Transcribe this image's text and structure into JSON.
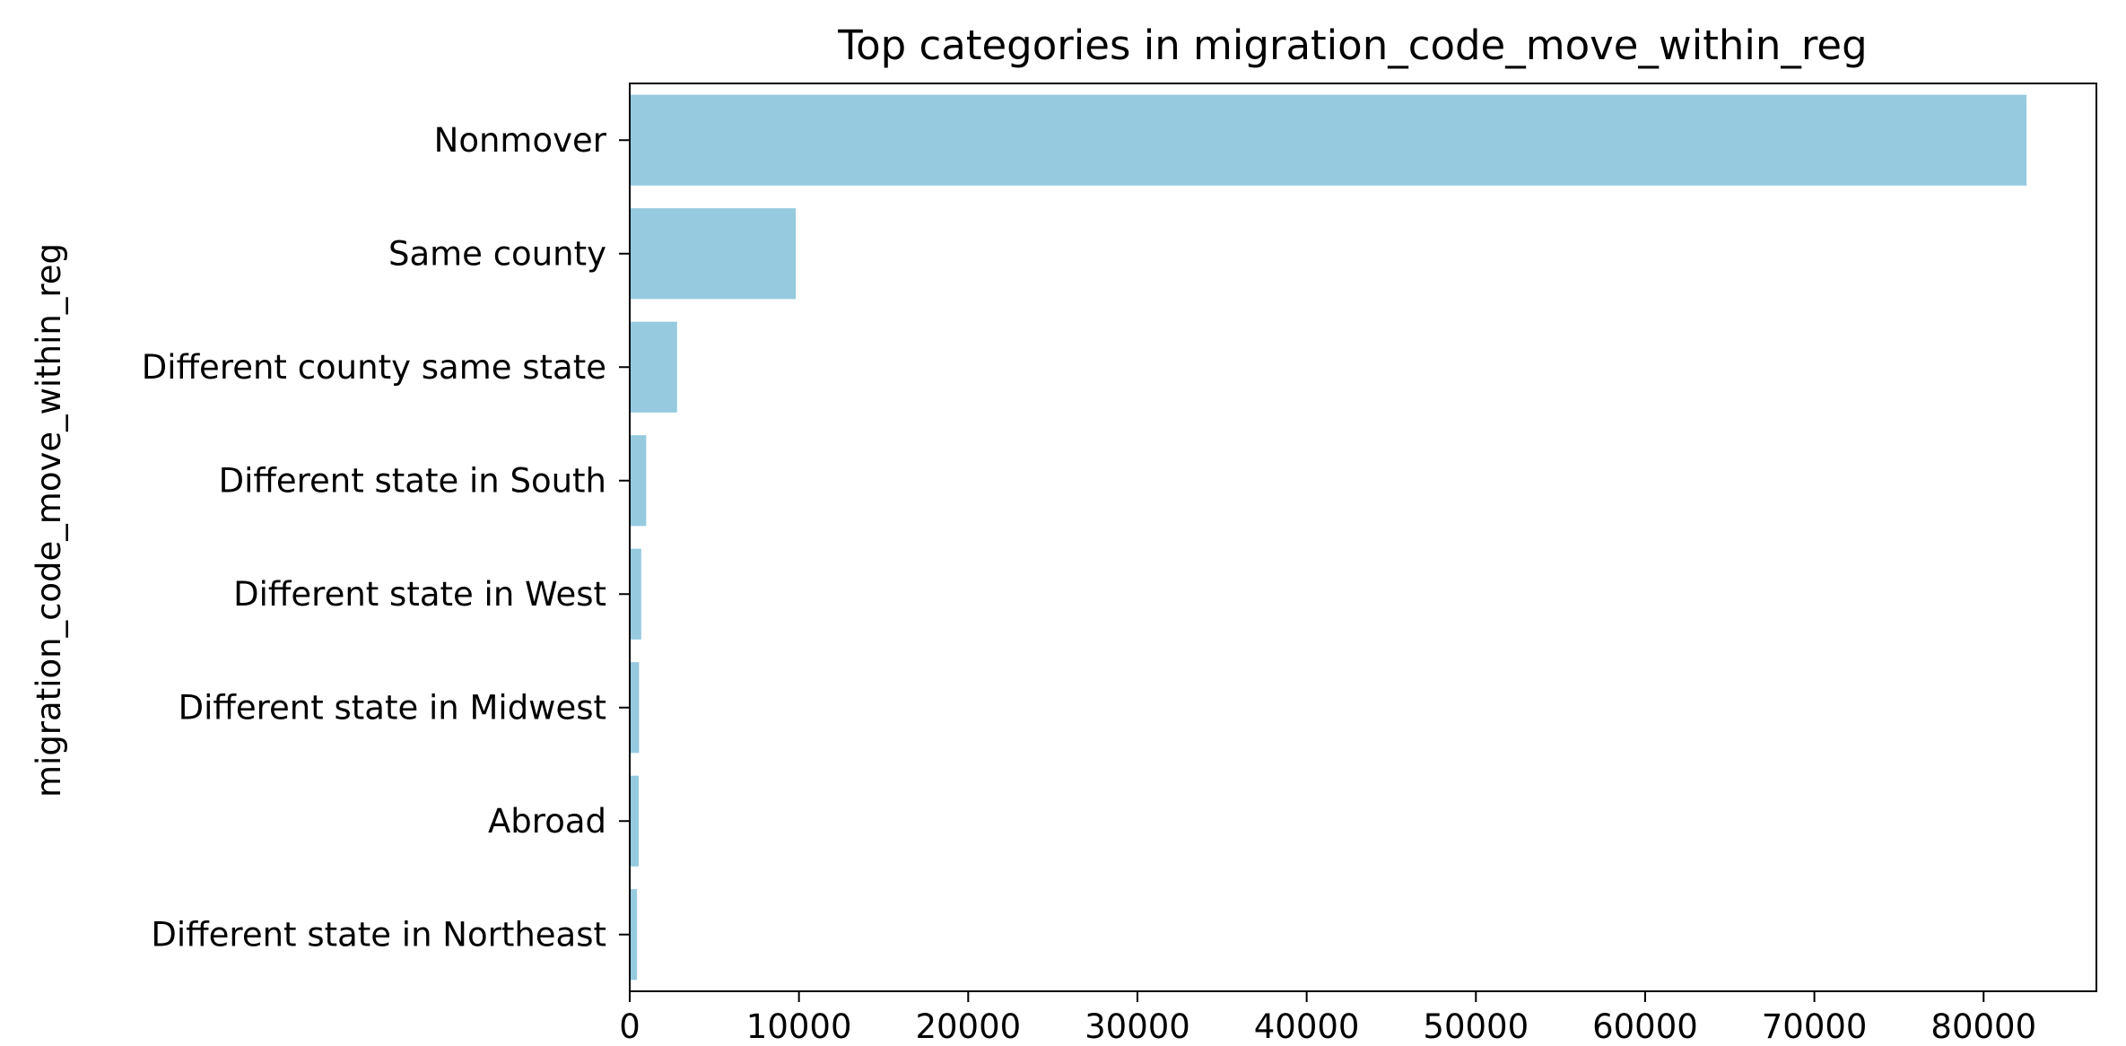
{
  "chart_data": {
    "type": "bar",
    "orientation": "horizontal",
    "title": "Top categories in migration_code_move_within_reg",
    "xlabel": "",
    "ylabel": "migration_code_move_within_reg",
    "categories": [
      "Nonmover",
      "Same county",
      "Different county same state",
      "Different state in South",
      "Different state in West",
      "Different state in Midwest",
      "Abroad",
      "Different state in Northeast"
    ],
    "values": [
      82538,
      9812,
      2797,
      973,
      679,
      551,
      530,
      429
    ],
    "xlim": [
      0,
      86665
    ],
    "xticks": [
      0,
      10000,
      20000,
      30000,
      40000,
      50000,
      60000,
      70000,
      80000
    ],
    "grid": false,
    "legend": "none",
    "bar_color": "#95cadf"
  }
}
